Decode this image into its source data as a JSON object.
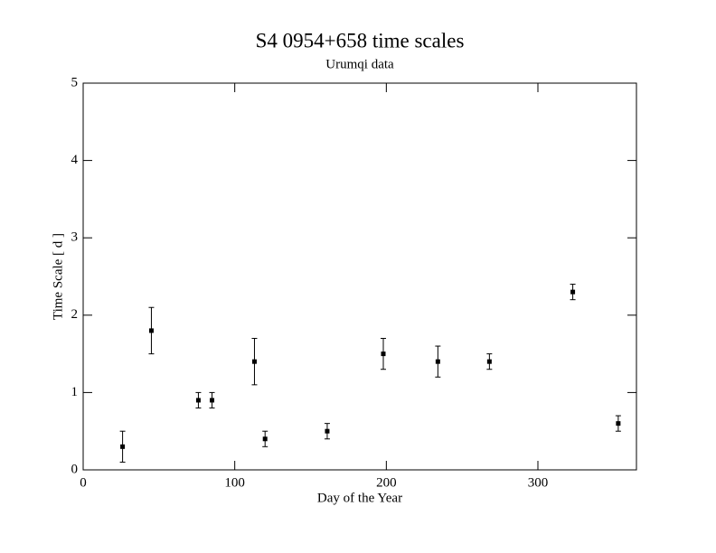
{
  "chart_data": {
    "type": "scatter",
    "title": "S4 0954+658 time scales",
    "subtitle": "Urumqi data",
    "x_label": "Day of the Year",
    "y_label": "Time Scale [ d ]",
    "xlim": [
      0,
      365
    ],
    "ylim": [
      0,
      5
    ],
    "xticks": [
      0,
      100,
      200,
      300
    ],
    "yticks": [
      0,
      1,
      2,
      3,
      4,
      5
    ],
    "color": "#000000",
    "x": [
      26,
      45,
      76,
      85,
      113,
      120,
      161,
      198,
      234,
      268,
      323,
      353
    ],
    "values": [
      0.3,
      1.8,
      0.9,
      0.9,
      1.4,
      0.4,
      0.5,
      1.5,
      1.4,
      1.4,
      2.3,
      0.6
    ],
    "errors": [
      0.2,
      0.3,
      0.1,
      0.1,
      0.3,
      0.1,
      0.1,
      0.2,
      0.2,
      0.1,
      0.1,
      0.1
    ]
  }
}
